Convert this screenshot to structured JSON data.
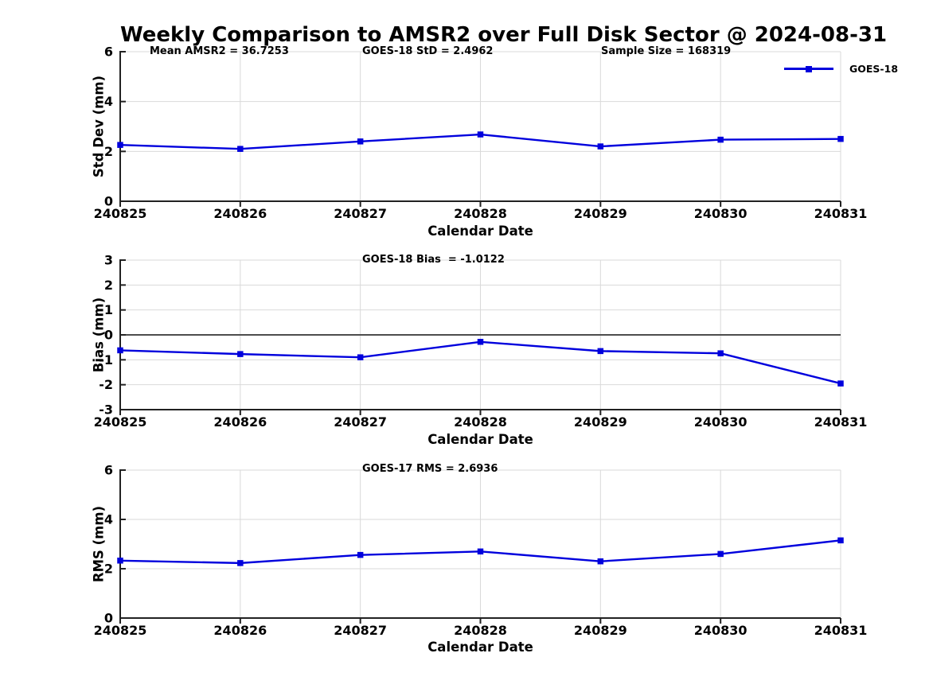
{
  "title": "Weekly Comparison to AMSR2 over Full Disk Sector @ 2024-08-31",
  "legend": {
    "label": "GOES-18"
  },
  "colors": {
    "line": "#0000dd",
    "grid": "#d9d9d9",
    "axis": "#222222",
    "zero_line": "#4d4d4d",
    "text": "#000000",
    "background": "#ffffff"
  },
  "chart_data": [
    {
      "type": "line",
      "series_name": "GOES-18",
      "categories": [
        "240825",
        "240826",
        "240827",
        "240828",
        "240829",
        "240830",
        "240831"
      ],
      "values": [
        2.26,
        2.1,
        2.4,
        2.68,
        2.2,
        2.47,
        2.5
      ],
      "annotations": [
        "Mean AMSR2 = 36.7253",
        "GOES-18 StD = 2.4962",
        "Sample Size = 168319"
      ],
      "xlabel": "Calendar Date",
      "ylabel": "Std Dev (mm)",
      "ylim": [
        0,
        6
      ],
      "yticks": [
        0,
        2,
        4,
        6
      ],
      "grid": true,
      "zero_line": false,
      "legend_position": "top-right",
      "marker": "square"
    },
    {
      "type": "line",
      "series_name": "GOES-18",
      "categories": [
        "240825",
        "240826",
        "240827",
        "240828",
        "240829",
        "240830",
        "240831"
      ],
      "values": [
        -0.62,
        -0.77,
        -0.9,
        -0.28,
        -0.65,
        -0.74,
        -1.95
      ],
      "annotations": [
        "GOES-18 Bias  = -1.0122"
      ],
      "xlabel": "Calendar Date",
      "ylabel": "Bias (mm)",
      "ylim": [
        -3,
        3
      ],
      "yticks": [
        -3,
        -2,
        -1,
        0,
        1,
        2,
        3
      ],
      "grid": true,
      "zero_line": true,
      "legend_position": "none",
      "marker": "square"
    },
    {
      "type": "line",
      "series_name": "GOES-18",
      "categories": [
        "240825",
        "240826",
        "240827",
        "240828",
        "240829",
        "240830",
        "240831"
      ],
      "values": [
        2.33,
        2.23,
        2.56,
        2.7,
        2.3,
        2.6,
        3.15
      ],
      "annotations": [
        "GOES-17 RMS = 2.6936"
      ],
      "xlabel": "Calendar Date",
      "ylabel": "RMS (mm)",
      "ylim": [
        0,
        6
      ],
      "yticks": [
        0,
        2,
        4,
        6
      ],
      "grid": true,
      "zero_line": false,
      "legend_position": "none",
      "marker": "square"
    }
  ]
}
